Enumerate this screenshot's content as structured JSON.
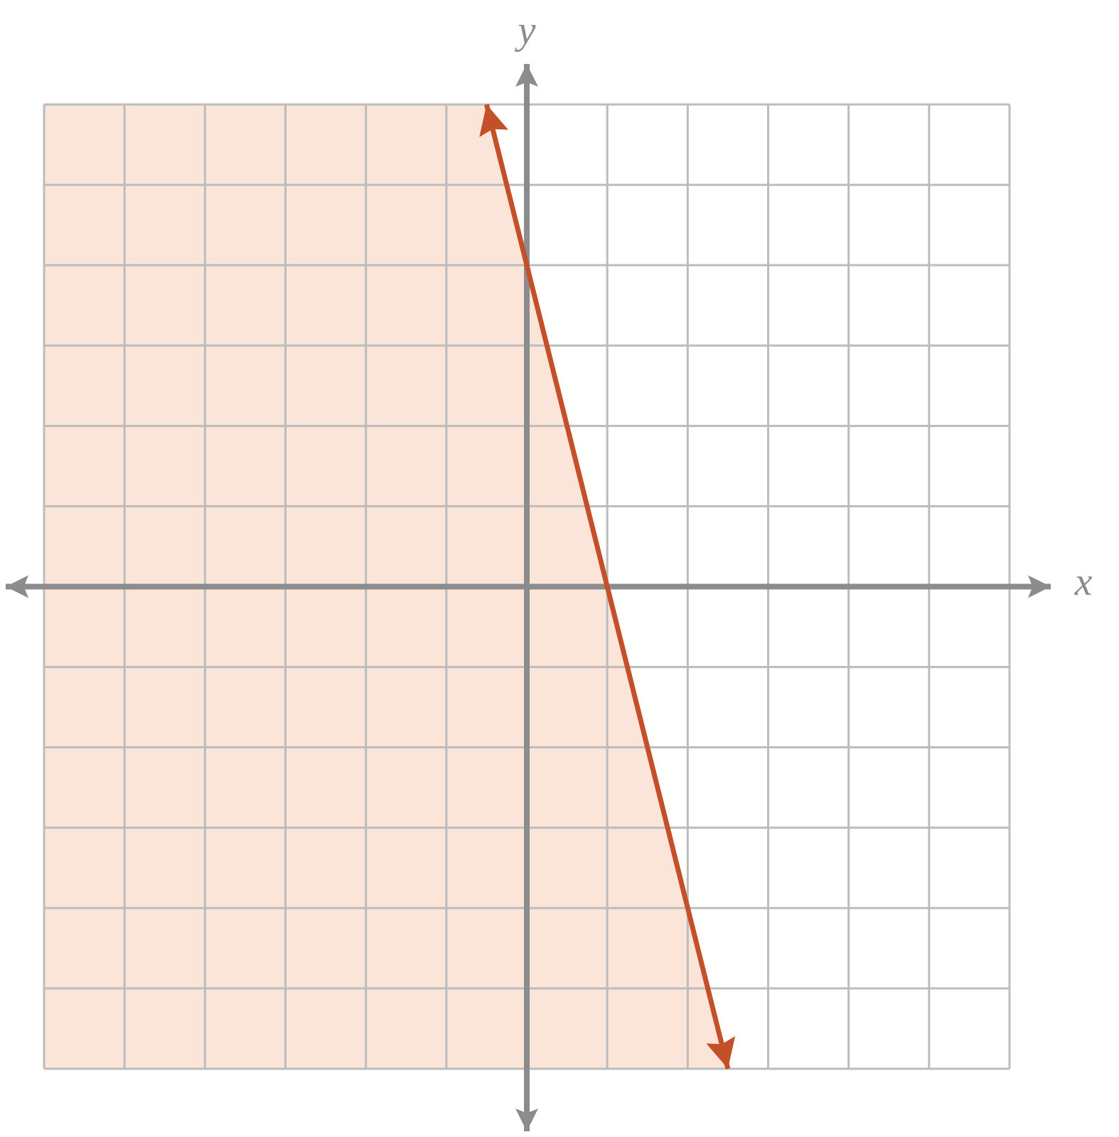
{
  "chart_data": {
    "type": "line",
    "x_label": "x",
    "y_label": "y",
    "xlim": [
      -6,
      6
    ],
    "ylim": [
      -6,
      6
    ],
    "xticks": [
      -6,
      -5,
      -4,
      -3,
      -2,
      -1,
      0,
      1,
      2,
      3,
      4,
      5,
      6
    ],
    "yticks": [
      -6,
      -5,
      -4,
      -3,
      -2,
      -1,
      0,
      1,
      2,
      3,
      4,
      5,
      6
    ],
    "grid": true,
    "grid_color": "#bcbcbe",
    "axis_color": "#8c8c8e",
    "shade": "left",
    "shade_color": "#fbe4d8",
    "series": [
      {
        "color": "#c4502a",
        "x": [
          -0.5,
          2.5
        ],
        "values": [
          6,
          -6
        ]
      }
    ]
  }
}
